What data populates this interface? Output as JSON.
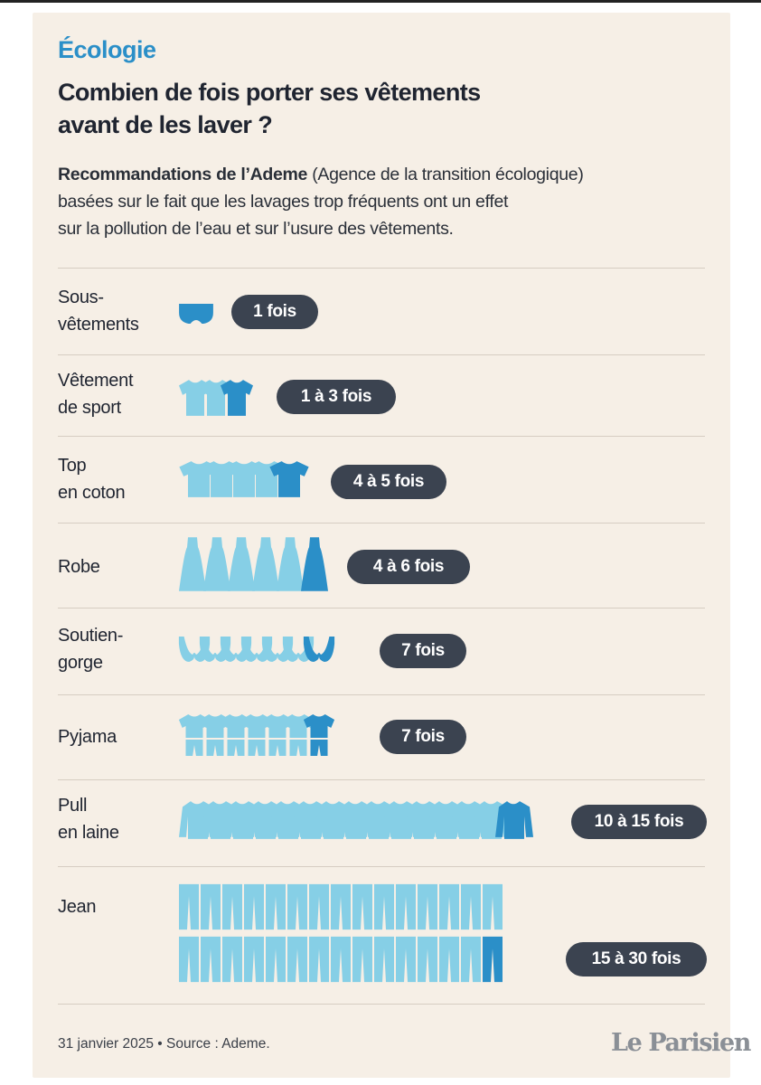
{
  "kicker": "Écologie",
  "title": [
    "Combien de fois porter ses vêtements",
    "avant de les laver ?"
  ],
  "intro": {
    "bold": "Recommandations de l’Ademe",
    "rest": " (Agence de la transition écologique)",
    "line2": "basées sur le fait que les lavages trop fréquents ont un effet",
    "line3": "sur la pollution de l’eau et sur l’usure des vêtements."
  },
  "colors": {
    "background": "#f6efe6",
    "light_icon": "#86cfe6",
    "dark_icon": "#2b8fc8",
    "badge": "#3b4350",
    "kicker": "#2b8fc8"
  },
  "rows": [
    {
      "label": [
        "Sous-",
        "vêtements"
      ],
      "icon": "briefs-icon",
      "badge": "1 fois"
    },
    {
      "label": [
        "Vêtement",
        "de sport"
      ],
      "icon": "tshirt-icon",
      "badge": "1 à 3 fois"
    },
    {
      "label": [
        "Top",
        "en coton"
      ],
      "icon": "top-icon",
      "badge": "4 à 5 fois"
    },
    {
      "label": [
        "Robe"
      ],
      "icon": "dress-icon",
      "badge": "4 à 6 fois"
    },
    {
      "label": [
        "Soutien-",
        "gorge"
      ],
      "icon": "bra-icon",
      "badge": "7 fois"
    },
    {
      "label": [
        "Pyjama"
      ],
      "icon": "pyjama-icon",
      "badge": "7 fois"
    },
    {
      "label": [
        "Pull",
        "en laine"
      ],
      "icon": "sweater-icon",
      "badge": "10 à 15 fois"
    },
    {
      "label": [
        "Jean"
      ],
      "icon": "jeans-icon",
      "badge": "15 à 30 fois"
    }
  ],
  "chart_data": {
    "type": "bar",
    "categories": [
      "Sous-vêtements",
      "Vêtement de sport",
      "Top en coton",
      "Robe",
      "Soutien-gorge",
      "Pyjama",
      "Pull en laine",
      "Jean"
    ],
    "series": [
      {
        "values_min": [
          1,
          1,
          4,
          4,
          7,
          7,
          10,
          15
        ],
        "values_max": [
          1,
          3,
          5,
          6,
          7,
          7,
          15,
          30
        ]
      }
    ],
    "value_labels": [
      "1 fois",
      "1 à 3 fois",
      "4 à 5 fois",
      "4 à 6 fois",
      "7 fois",
      "7 fois",
      "10 à 15 fois",
      "15 à 30 fois"
    ]
  },
  "footer": "31 janvier 2025 • Source : Ademe.",
  "logo": "Le Parisien"
}
